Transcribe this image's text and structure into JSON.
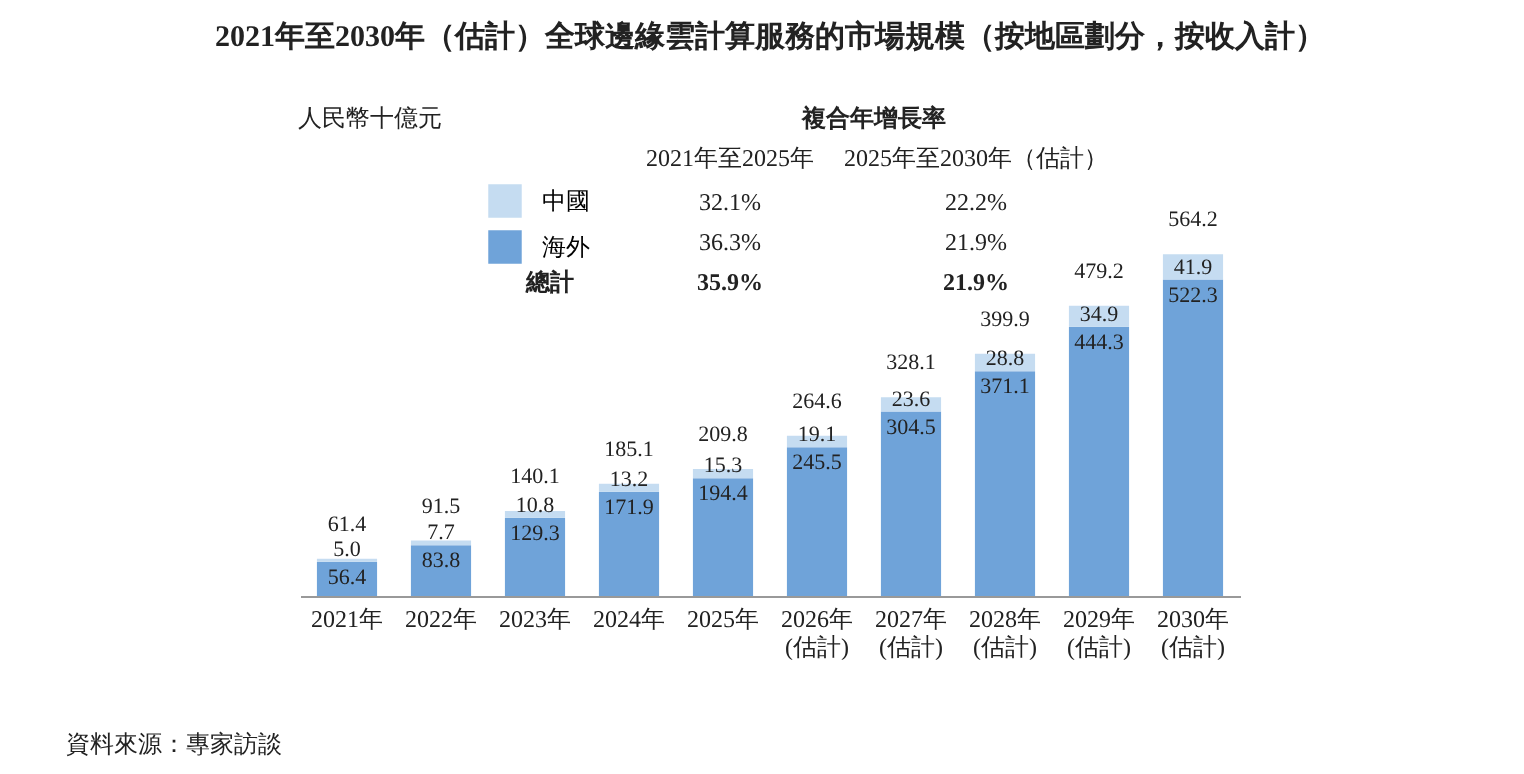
{
  "chart_data": {
    "type": "bar",
    "stacked": true,
    "title": "2021年至2030年（估計）全球邊緣雲計算服務的市場規模（按地區劃分，按收入計）",
    "categories": [
      "2021年",
      "2022年",
      "2023年",
      "2024年",
      "2025年",
      "2026年\n(估計)",
      "2027年\n(估計)",
      "2028年\n(估計)",
      "2029年\n(估計)",
      "2030年\n(估計)"
    ],
    "series": [
      {
        "name": "海外",
        "color": "#6fa3d9",
        "values": [
          56.4,
          83.8,
          129.3,
          171.9,
          194.4,
          245.5,
          304.5,
          371.1,
          444.3,
          522.3
        ],
        "value_labels": [
          "56.4",
          "83.8",
          "129.3",
          "171.9",
          "194.4",
          "245.5",
          "304.5",
          "371.1",
          "444.3",
          "522.3"
        ]
      },
      {
        "name": "中國",
        "color": "#c5dcf1",
        "values": [
          5.0,
          7.7,
          10.8,
          13.2,
          15.3,
          19.1,
          23.6,
          28.8,
          34.9,
          41.9
        ],
        "value_labels": [
          "5.0",
          "7.7",
          "10.8",
          "13.2",
          "15.3",
          "19.1",
          "23.6",
          "28.8",
          "34.9",
          "41.9"
        ]
      }
    ],
    "totals": [
      "61.4",
      "91.5",
      "140.1",
      "185.1",
      "209.8",
      "264.6",
      "328.1",
      "399.9",
      "479.2",
      "564.2"
    ],
    "legend": "top left",
    "annotations": [
      "人民幣十億元",
      "複合年增長率",
      "2021年至2025年",
      "2025年至2030年（估計）",
      "32.1%",
      "22.2%",
      "36.3%",
      "21.9%",
      "總計",
      "35.9%",
      "21.9%",
      "資料來源：專家訪談"
    ]
  }
}
